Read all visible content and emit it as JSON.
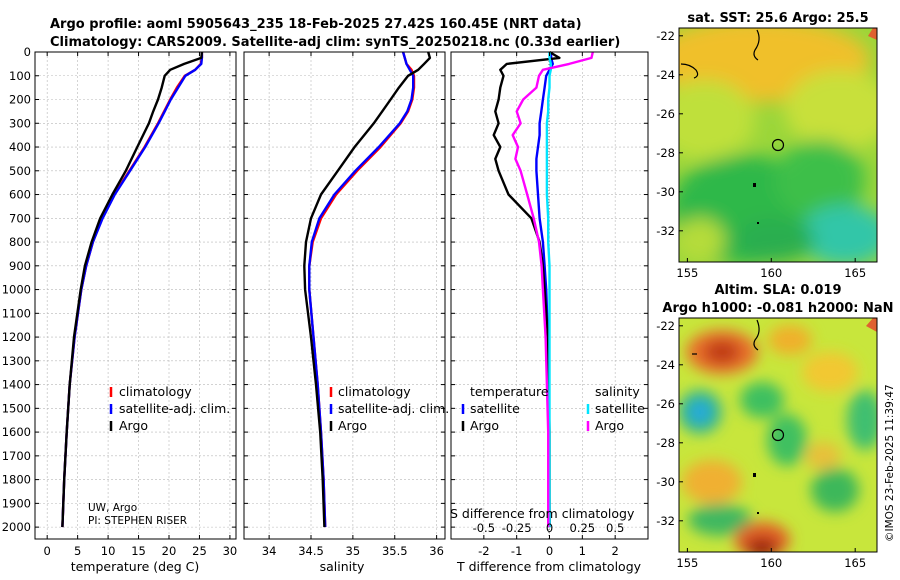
{
  "header": {
    "line1": "Argo profile: aoml 5905643_235 18-Feb-2025 27.42S 160.45E (NRT data)",
    "line2": "Climatology: CARS2009. Satellite-adj clim: synTS_20250218.nc (0.33d earlier)"
  },
  "credit": {
    "line1": "UW, Argo",
    "line2": "PI: STEPHEN RISER"
  },
  "timestamp": "©IMOS 23-Feb-2025 11:39:47",
  "legend_profiles": [
    "climatology",
    "satellite-adj. clim.",
    "Argo"
  ],
  "legend_diff": {
    "temperature_head": "temperature",
    "salinity_head": "salinity",
    "satellite": "satellite",
    "argo": "Argo"
  },
  "colors": {
    "climatology": "#ff0000",
    "satellite": "#0000ff",
    "argo": "#000000",
    "s_sat": "#00e5ff",
    "s_argo": "#ff00ff"
  },
  "chart_data": [
    {
      "id": "temperature",
      "type": "line",
      "xlabel": "temperature (deg C)",
      "ylabel": "",
      "xlim": [
        -2,
        31
      ],
      "ylim": [
        2050,
        0
      ],
      "xticks": [
        0,
        5,
        10,
        15,
        20,
        25,
        30
      ],
      "yticks": [
        0,
        100,
        200,
        300,
        400,
        500,
        600,
        700,
        800,
        900,
        1000,
        1100,
        1200,
        1300,
        1400,
        1500,
        1600,
        1700,
        1800,
        1900,
        2000
      ],
      "depth": [
        0,
        25,
        50,
        75,
        100,
        150,
        200,
        250,
        300,
        400,
        500,
        600,
        700,
        800,
        900,
        1000,
        1200,
        1400,
        1600,
        1800,
        2000
      ],
      "series": [
        {
          "name": "climatology",
          "values": [
            25.4,
            25.4,
            25.2,
            24.3,
            22.6,
            21.3,
            20.2,
            19.2,
            18.2,
            16.0,
            13.5,
            11.0,
            9.0,
            7.5,
            6.4,
            5.6,
            4.5,
            3.7,
            3.2,
            2.8,
            2.5
          ]
        },
        {
          "name": "satellite-adj. clim.",
          "values": [
            25.4,
            25.4,
            25.3,
            24.3,
            22.7,
            21.5,
            20.3,
            19.3,
            18.3,
            16.1,
            13.6,
            11.1,
            9.1,
            7.5,
            6.4,
            5.6,
            4.5,
            3.7,
            3.2,
            2.8,
            2.5
          ]
        },
        {
          "name": "Argo",
          "values": [
            25.4,
            25.3,
            22.5,
            20.2,
            19.3,
            18.8,
            18.2,
            17.4,
            16.7,
            14.8,
            12.9,
            10.7,
            8.7,
            7.3,
            6.2,
            5.5,
            4.4,
            3.7,
            3.2,
            2.8,
            2.5
          ]
        }
      ]
    },
    {
      "id": "salinity",
      "type": "line",
      "xlabel": "salinity",
      "ylabel": "",
      "xlim": [
        33.7,
        36.1
      ],
      "ylim": [
        2050,
        0
      ],
      "xticks": [
        34,
        34.5,
        35,
        35.5,
        36
      ],
      "depth": [
        0,
        25,
        50,
        75,
        100,
        150,
        200,
        250,
        300,
        400,
        500,
        600,
        700,
        800,
        900,
        1000,
        1200,
        1400,
        1600,
        1800,
        2000
      ],
      "series": [
        {
          "name": "climatology",
          "values": [
            35.6,
            35.62,
            35.64,
            35.7,
            35.73,
            35.73,
            35.71,
            35.66,
            35.57,
            35.33,
            35.05,
            34.8,
            34.62,
            34.52,
            34.48,
            34.48,
            34.53,
            34.58,
            34.62,
            34.65,
            34.67
          ]
        },
        {
          "name": "satellite-adj. clim.",
          "values": [
            35.6,
            35.62,
            35.64,
            35.68,
            35.72,
            35.72,
            35.7,
            35.65,
            35.56,
            35.31,
            35.03,
            34.78,
            34.6,
            34.51,
            34.48,
            34.48,
            34.53,
            34.58,
            34.62,
            34.65,
            34.67
          ]
        },
        {
          "name": "Argo",
          "values": [
            35.9,
            35.92,
            35.85,
            35.78,
            35.66,
            35.55,
            35.45,
            35.35,
            35.25,
            35.02,
            34.82,
            34.62,
            34.5,
            34.44,
            34.42,
            34.43,
            34.5,
            34.56,
            34.61,
            34.64,
            34.66
          ]
        }
      ]
    },
    {
      "id": "difference",
      "type": "line",
      "xlabel": "T difference from climatology",
      "xlabel_top": "S difference from climatology",
      "xlim": [
        -3,
        3
      ],
      "ylim": [
        2050,
        0
      ],
      "xticks": [
        -2,
        -1,
        0,
        1,
        2
      ],
      "xticks_s": [
        -0.5,
        -0.25,
        0,
        0.25,
        0.5
      ],
      "s_to_t_scale": 4,
      "depth": [
        0,
        25,
        50,
        75,
        100,
        150,
        200,
        250,
        300,
        350,
        400,
        450,
        500,
        600,
        700,
        800,
        900,
        1000,
        1200,
        1400,
        1600,
        1800,
        2000
      ],
      "series": [
        {
          "name": "T satellite",
          "values": [
            0.05,
            0.05,
            0.1,
            0.0,
            -0.1,
            -0.15,
            -0.2,
            -0.25,
            -0.3,
            -0.3,
            -0.35,
            -0.4,
            -0.4,
            -0.35,
            -0.3,
            -0.2,
            -0.15,
            -0.1,
            -0.05,
            -0.03,
            -0.02,
            -0.01,
            0.0
          ]
        },
        {
          "name": "T Argo",
          "values": [
            0.0,
            0.3,
            -1.3,
            -1.5,
            -1.4,
            -1.5,
            -1.55,
            -1.65,
            -1.55,
            -1.7,
            -1.5,
            -1.65,
            -1.55,
            -1.25,
            -0.55,
            -0.3,
            -0.2,
            -0.15,
            -0.05,
            -0.02,
            0.0,
            0.0,
            0.0
          ]
        },
        {
          "name": "S satellite",
          "values": [
            0.0,
            0.0,
            0.01,
            0.01,
            0.0,
            0.0,
            -0.01,
            -0.01,
            -0.02,
            -0.02,
            -0.02,
            -0.02,
            -0.02,
            -0.02,
            -0.01,
            -0.01,
            0.0,
            0.0,
            0.0,
            0.0,
            0.0,
            0.0,
            0.0
          ]
        },
        {
          "name": "S Argo",
          "values": [
            0.33,
            0.32,
            0.15,
            -0.05,
            -0.08,
            -0.1,
            -0.2,
            -0.25,
            -0.22,
            -0.28,
            -0.24,
            -0.26,
            -0.22,
            -0.17,
            -0.12,
            -0.08,
            -0.06,
            -0.05,
            -0.03,
            -0.02,
            -0.01,
            -0.01,
            -0.01
          ]
        }
      ]
    },
    {
      "id": "sst_map",
      "type": "heatmap",
      "title": "sat. SST: 25.6 Argo: 25.5",
      "xlim": [
        154.5,
        166.3
      ],
      "ylim": [
        -33.6,
        -21.6
      ],
      "xticks": [
        155,
        160,
        165
      ],
      "yticks": [
        -22,
        -24,
        -26,
        -28,
        -30,
        -32
      ],
      "argo_position": [
        160.45,
        -27.42
      ]
    },
    {
      "id": "sla_map",
      "type": "heatmap",
      "title_line1": "Altim. SLA: 0.019",
      "title_line2": "Argo h1000: -0.081 h2000: NaN",
      "xlim": [
        154.5,
        166.3
      ],
      "ylim": [
        -33.6,
        -21.6
      ],
      "xticks": [
        155,
        160,
        165
      ],
      "yticks": [
        -22,
        -24,
        -26,
        -28,
        -30,
        -32
      ],
      "argo_position": [
        160.45,
        -27.42
      ]
    }
  ]
}
